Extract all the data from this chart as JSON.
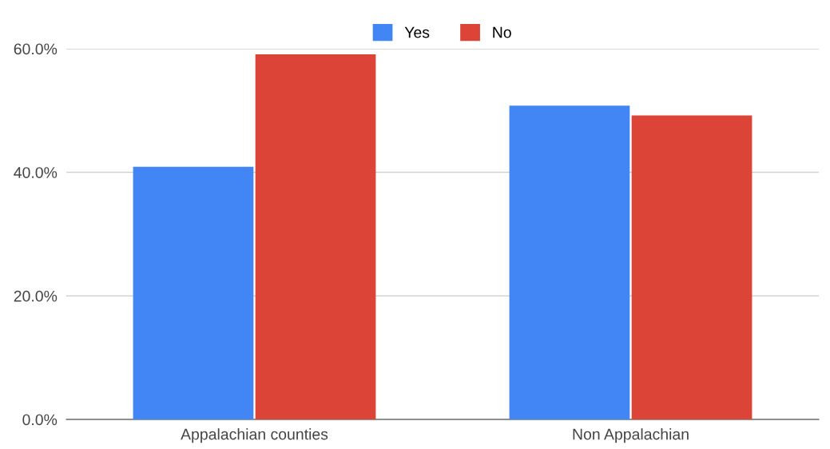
{
  "chart_data": {
    "type": "bar",
    "categories": [
      "Appalachian counties",
      "Non Appalachian"
    ],
    "series": [
      {
        "name": "Yes",
        "color": "#4285f4",
        "values": [
          40.9,
          50.8
        ]
      },
      {
        "name": "No",
        "color": "#db4437",
        "values": [
          59.1,
          49.2
        ]
      }
    ],
    "ylim": [
      0,
      60
    ],
    "yticks": [
      {
        "value": 0,
        "label": "0.0%"
      },
      {
        "value": 20,
        "label": "20.0%"
      },
      {
        "value": 40,
        "label": "40.0%"
      },
      {
        "value": 60,
        "label": "60.0%"
      }
    ],
    "grid": "y",
    "legend": "top"
  }
}
